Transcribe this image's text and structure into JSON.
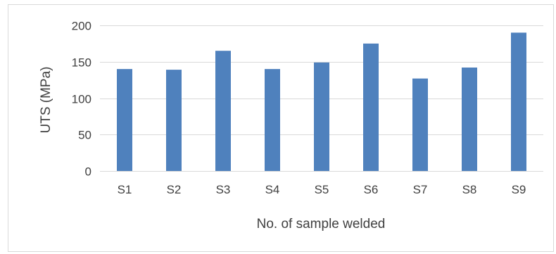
{
  "chart_data": {
    "type": "bar",
    "title": "",
    "xlabel": "No. of sample welded",
    "ylabel": "UTS (MPa)",
    "categories": [
      "S1",
      "S2",
      "S3",
      "S4",
      "S5",
      "S6",
      "S7",
      "S8",
      "S9"
    ],
    "series": [
      {
        "values": [
          140,
          139,
          165,
          140,
          149,
          175,
          127,
          142,
          190
        ]
      }
    ],
    "ylim": [
      0,
      200
    ],
    "yticks": [
      0,
      50,
      100,
      150,
      200
    ],
    "grid": true,
    "legend": "none",
    "bar_color": "#4f81bd",
    "grid_color": "#d9d9d9"
  }
}
